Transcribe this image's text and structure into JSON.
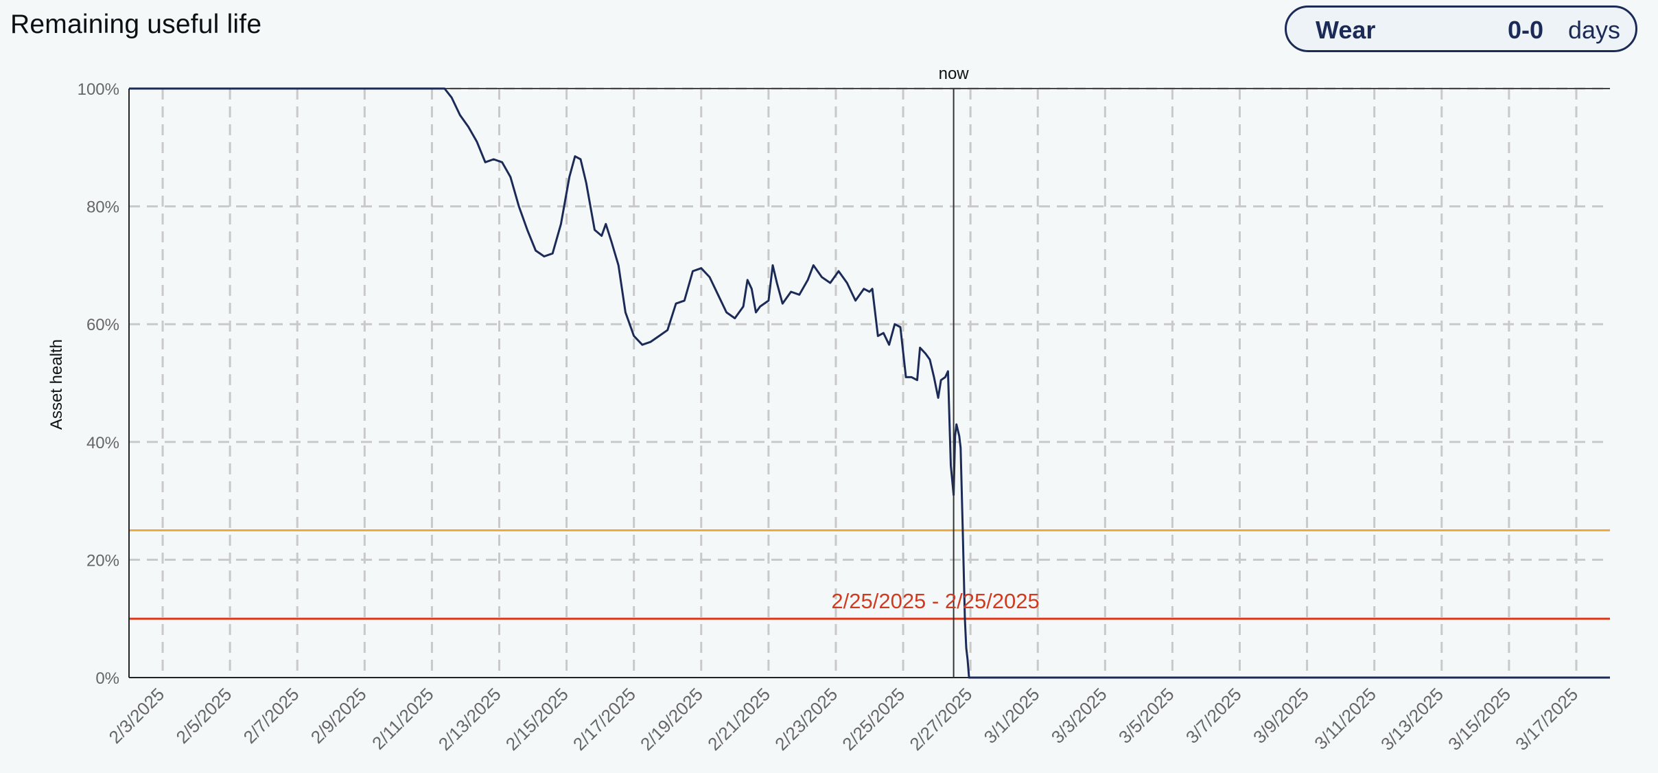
{
  "header": {
    "title": "Remaining useful life",
    "badge": {
      "label": "Wear",
      "value": "0-0",
      "unit": "days"
    }
  },
  "chart_data": {
    "type": "line",
    "ylabel": "Asset health",
    "ylim": [
      0,
      100
    ],
    "ytick_labels": [
      "0%",
      "20%",
      "40%",
      "60%",
      "80%",
      "100%"
    ],
    "ytick_values": [
      0,
      20,
      40,
      60,
      80,
      100
    ],
    "xlim": [
      "2025-02-02",
      "2025-03-18"
    ],
    "xtick_labels": [
      "2/3/2025",
      "2/5/2025",
      "2/7/2025",
      "2/9/2025",
      "2/11/2025",
      "2/13/2025",
      "2/15/2025",
      "2/17/2025",
      "2/19/2025",
      "2/21/2025",
      "2/23/2025",
      "2/25/2025",
      "2/27/2025",
      "3/1/2025",
      "3/3/2025",
      "3/5/2025",
      "3/7/2025",
      "3/9/2025",
      "3/11/2025",
      "3/13/2025",
      "3/15/2025",
      "3/17/2025"
    ],
    "xtick_dates": [
      "2025-02-03",
      "2025-02-05",
      "2025-02-07",
      "2025-02-09",
      "2025-02-11",
      "2025-02-13",
      "2025-02-15",
      "2025-02-17",
      "2025-02-19",
      "2025-02-21",
      "2025-02-23",
      "2025-02-25",
      "2025-02-27",
      "2025-03-01",
      "2025-03-03",
      "2025-03-05",
      "2025-03-07",
      "2025-03-09",
      "2025-03-11",
      "2025-03-13",
      "2025-03-15",
      "2025-03-17"
    ],
    "grid": true,
    "now": {
      "label": "now",
      "date": "2025-02-26 12:00"
    },
    "thresholds": [
      {
        "value": 25,
        "color": "#f2a93b"
      },
      {
        "value": 10,
        "color": "#dc3b1f"
      }
    ],
    "range_annotation": {
      "text": "2/25/2025 - 2/25/2025",
      "color": "#d23a20"
    },
    "series": [
      {
        "color": "#1b2a57",
        "points": [
          [
            "2025-02-02 00:00",
            100
          ],
          [
            "2025-02-11 09:00",
            100
          ],
          [
            "2025-02-11 14:00",
            98.5
          ],
          [
            "2025-02-11 20:00",
            95.5
          ],
          [
            "2025-02-12 02:00",
            93.5
          ],
          [
            "2025-02-12 08:00",
            91
          ],
          [
            "2025-02-12 14:00",
            87.5
          ],
          [
            "2025-02-12 20:00",
            88
          ],
          [
            "2025-02-13 02:00",
            87.5
          ],
          [
            "2025-02-13 08:00",
            85
          ],
          [
            "2025-02-13 14:00",
            80
          ],
          [
            "2025-02-13 20:00",
            76
          ],
          [
            "2025-02-14 02:00",
            72.5
          ],
          [
            "2025-02-14 08:00",
            71.5
          ],
          [
            "2025-02-14 14:00",
            72
          ],
          [
            "2025-02-14 20:00",
            77
          ],
          [
            "2025-02-15 02:00",
            85
          ],
          [
            "2025-02-15 06:00",
            88.5
          ],
          [
            "2025-02-15 10:00",
            88
          ],
          [
            "2025-02-15 14:00",
            84
          ],
          [
            "2025-02-15 20:00",
            76
          ],
          [
            "2025-02-16 01:00",
            75
          ],
          [
            "2025-02-16 04:00",
            77
          ],
          [
            "2025-02-16 08:00",
            74
          ],
          [
            "2025-02-16 13:00",
            70
          ],
          [
            "2025-02-16 18:00",
            62
          ],
          [
            "2025-02-17 00:00",
            58
          ],
          [
            "2025-02-17 06:00",
            56.5
          ],
          [
            "2025-02-17 12:00",
            57
          ],
          [
            "2025-02-17 18:00",
            58
          ],
          [
            "2025-02-18 00:00",
            59
          ],
          [
            "2025-02-18 06:00",
            63.5
          ],
          [
            "2025-02-18 12:00",
            64
          ],
          [
            "2025-02-18 18:00",
            69
          ],
          [
            "2025-02-19 00:00",
            69.5
          ],
          [
            "2025-02-19 06:00",
            68
          ],
          [
            "2025-02-19 12:00",
            65
          ],
          [
            "2025-02-19 18:00",
            62
          ],
          [
            "2025-02-20 00:00",
            61
          ],
          [
            "2025-02-20 06:00",
            63
          ],
          [
            "2025-02-20 09:00",
            67.5
          ],
          [
            "2025-02-20 12:00",
            66
          ],
          [
            "2025-02-20 15:00",
            62
          ],
          [
            "2025-02-20 18:00",
            63
          ],
          [
            "2025-02-21 00:00",
            64
          ],
          [
            "2025-02-21 03:00",
            70
          ],
          [
            "2025-02-21 06:00",
            67
          ],
          [
            "2025-02-21 10:00",
            63.5
          ],
          [
            "2025-02-21 16:00",
            65.5
          ],
          [
            "2025-02-21 22:00",
            65
          ],
          [
            "2025-02-22 04:00",
            67.5
          ],
          [
            "2025-02-22 08:00",
            70
          ],
          [
            "2025-02-22 14:00",
            68
          ],
          [
            "2025-02-22 20:00",
            67
          ],
          [
            "2025-02-23 02:00",
            69
          ],
          [
            "2025-02-23 08:00",
            67
          ],
          [
            "2025-02-23 14:00",
            64
          ],
          [
            "2025-02-23 20:00",
            66
          ],
          [
            "2025-02-24 00:00",
            65.5
          ],
          [
            "2025-02-24 02:00",
            66
          ],
          [
            "2025-02-24 06:00",
            58
          ],
          [
            "2025-02-24 10:00",
            58.5
          ],
          [
            "2025-02-24 14:00",
            56.5
          ],
          [
            "2025-02-24 18:00",
            60
          ],
          [
            "2025-02-24 22:00",
            59.5
          ],
          [
            "2025-02-25 02:00",
            51
          ],
          [
            "2025-02-25 06:00",
            51
          ],
          [
            "2025-02-25 10:00",
            50.5
          ],
          [
            "2025-02-25 12:00",
            56
          ],
          [
            "2025-02-25 16:00",
            55
          ],
          [
            "2025-02-25 19:00",
            54
          ],
          [
            "2025-02-25 22:00",
            51
          ],
          [
            "2025-02-26 01:00",
            47.5
          ],
          [
            "2025-02-26 03:00",
            50.5
          ],
          [
            "2025-02-26 06:00",
            51
          ],
          [
            "2025-02-26 08:00",
            52
          ],
          [
            "2025-02-26 10:00",
            36
          ],
          [
            "2025-02-26 12:00",
            31
          ],
          [
            "2025-02-26 13:00",
            41
          ],
          [
            "2025-02-26 14:00",
            43
          ],
          [
            "2025-02-26 16:00",
            41
          ],
          [
            "2025-02-26 17:00",
            39
          ],
          [
            "2025-02-26 18:30",
            25
          ],
          [
            "2025-02-26 20:00",
            10
          ],
          [
            "2025-02-26 21:00",
            5
          ],
          [
            "2025-02-26 22:00",
            3
          ],
          [
            "2025-02-26 23:00",
            0
          ],
          [
            "2025-03-18 00:00",
            0
          ]
        ]
      }
    ]
  }
}
